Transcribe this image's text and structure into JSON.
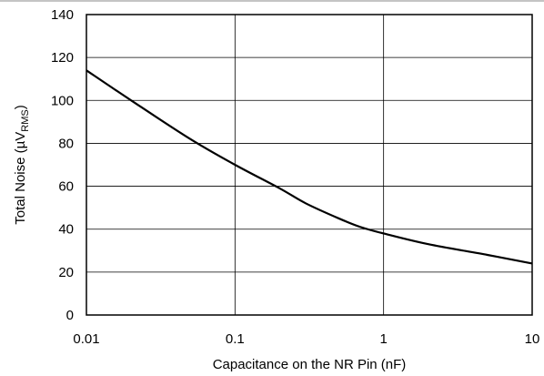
{
  "chart_data": {
    "type": "line",
    "xlabel": "Capacitance on the NR Pin (nF)",
    "ylabel": "Total Noise (µV",
    "ylabel_sub": "RMS",
    "ylabel_close": ")",
    "x_scale": "log",
    "xlim": [
      0.01,
      10
    ],
    "ylim": [
      0,
      140
    ],
    "grid": true,
    "x_ticks": [
      {
        "value": 0.01,
        "label": "0.01"
      },
      {
        "value": 0.1,
        "label": "0.1"
      },
      {
        "value": 1,
        "label": "1"
      },
      {
        "value": 10,
        "label": "10"
      }
    ],
    "y_ticks": [
      {
        "value": 0,
        "label": "0"
      },
      {
        "value": 20,
        "label": "20"
      },
      {
        "value": 40,
        "label": "40"
      },
      {
        "value": 60,
        "label": "60"
      },
      {
        "value": 80,
        "label": "80"
      },
      {
        "value": 100,
        "label": "100"
      },
      {
        "value": 120,
        "label": "120"
      },
      {
        "value": 140,
        "label": "140"
      }
    ],
    "series": [
      {
        "color": "#000000",
        "x": [
          0.01,
          0.02,
          0.05,
          0.1,
          0.2,
          0.3,
          0.5,
          0.7,
          1,
          2,
          5,
          10
        ],
        "y": [
          114,
          100,
          82,
          70,
          59,
          52,
          45,
          41,
          38,
          33,
          28,
          24
        ]
      }
    ]
  }
}
